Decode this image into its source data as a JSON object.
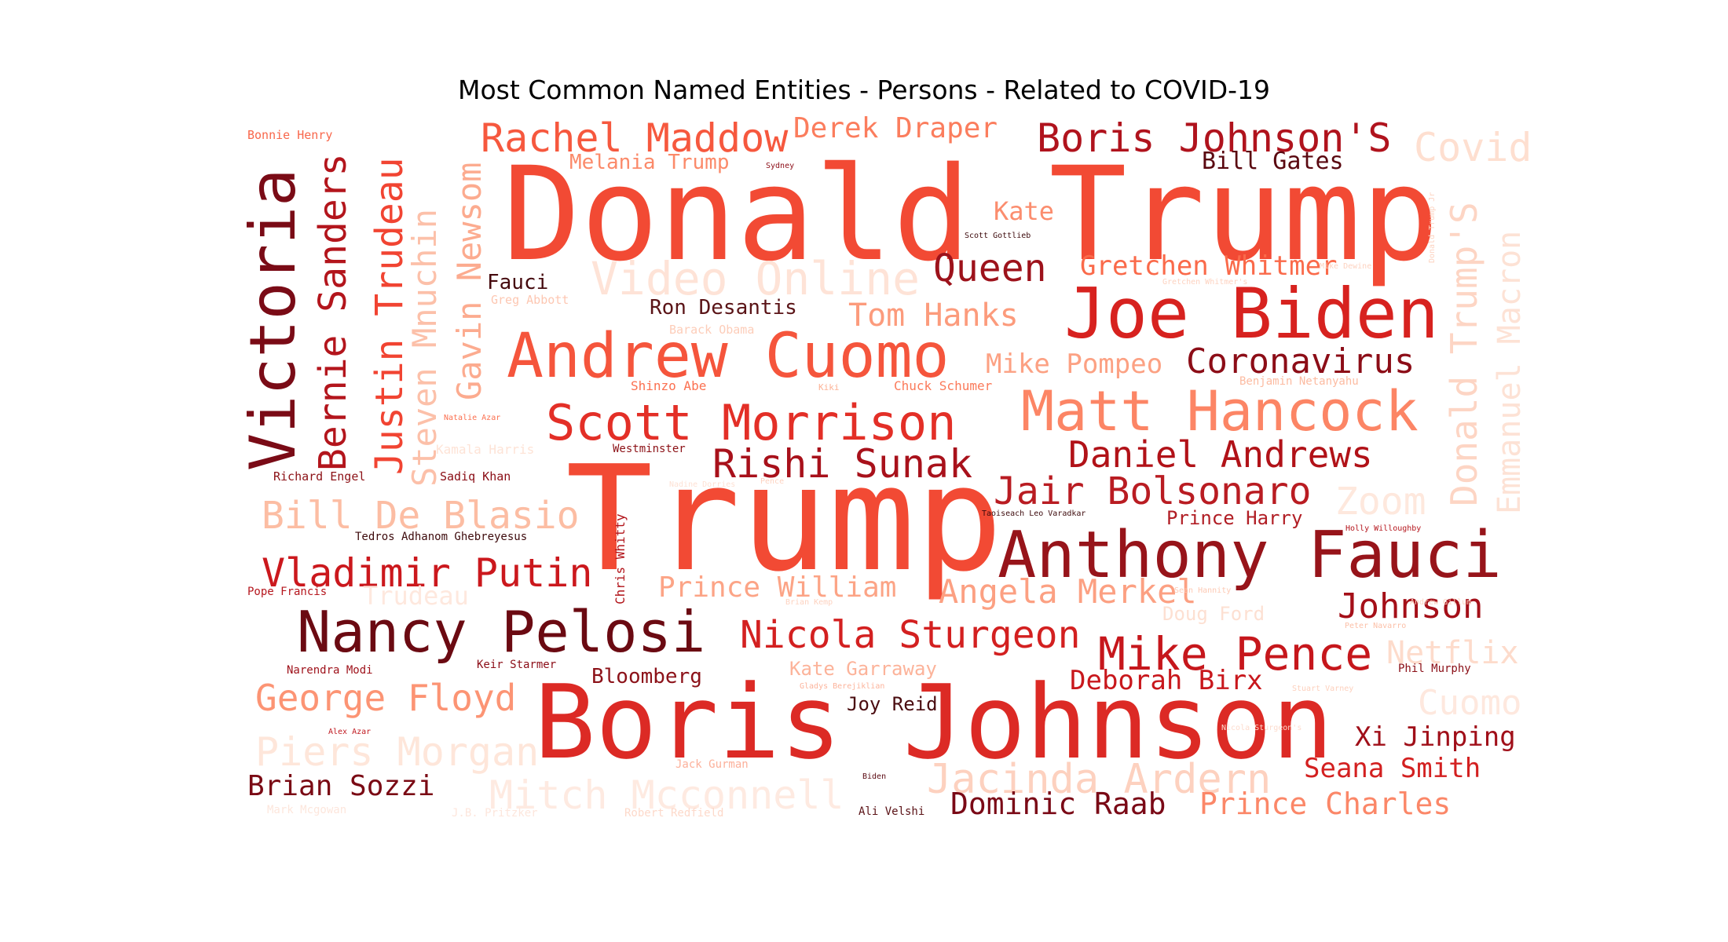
{
  "chart_data": {
    "type": "wordcloud",
    "title": "Most Common Named Entities - Persons - Related to COVID-19",
    "colormap": "Reds",
    "words": [
      {
        "text": "Donald Trump",
        "weight": 100,
        "color": "#f24a34"
      },
      {
        "text": "Trump",
        "weight": 98,
        "color": "#f24a34"
      },
      {
        "text": "Boris Johnson",
        "weight": 88,
        "color": "#dc2a25"
      },
      {
        "text": "Joe Biden",
        "weight": 66,
        "color": "#d7221f"
      },
      {
        "text": "Anthony Fauci",
        "weight": 60,
        "color": "#97141a"
      },
      {
        "text": "Andrew Cuomo",
        "weight": 60,
        "color": "#f5553c"
      },
      {
        "text": "Victoria",
        "weight": 59,
        "color": "#7a0b16"
      },
      {
        "text": "Matt Hancock",
        "weight": 56,
        "color": "#fc8565"
      },
      {
        "text": "Nancy Pelosi",
        "weight": 54,
        "color": "#6b0a12"
      },
      {
        "text": "Scott Morrison",
        "weight": 52,
        "color": "#e32f27"
      },
      {
        "text": "Donald Trump'S",
        "weight": 46,
        "color": "#fdd5c4"
      },
      {
        "text": "Video Online",
        "weight": 46,
        "color": "#fee3d7"
      },
      {
        "text": "Bernie Sanders",
        "weight": 44,
        "color": "#b3151c"
      },
      {
        "text": "Justin Trudeau",
        "weight": 44,
        "color": "#f14432"
      },
      {
        "text": "Mike Pence",
        "weight": 44,
        "color": "#c6171c"
      },
      {
        "text": "Rachel Maddow",
        "weight": 42,
        "color": "#f6583e"
      },
      {
        "text": "Boris Johnson'S",
        "weight": 42,
        "color": "#b0131d"
      },
      {
        "text": "Jacinda Ardern",
        "weight": 42,
        "color": "#fdd1bf"
      },
      {
        "text": "Vladimir Putin",
        "weight": 41,
        "color": "#cb181d"
      },
      {
        "text": "Steven Mnuchin",
        "weight": 41,
        "color": "#fcc0a9"
      },
      {
        "text": "Gavin Newsom",
        "weight": 41,
        "color": "#fcab8f"
      },
      {
        "text": "Rishi Sunak",
        "weight": 40,
        "color": "#a8111b"
      },
      {
        "text": "Jair Bolsonaro",
        "weight": 40,
        "color": "#b91c22"
      },
      {
        "text": "Bill De Blasio",
        "weight": 40,
        "color": "#fcbda3"
      },
      {
        "text": "Piers Morgan",
        "weight": 40,
        "color": "#fee6da"
      },
      {
        "text": "Mitch Mcconnell",
        "weight": 40,
        "color": "#feeae1"
      },
      {
        "text": "Zoom",
        "weight": 40,
        "color": "#fee8dd"
      },
      {
        "text": "Covid",
        "weight": 40,
        "color": "#fedfd0"
      },
      {
        "text": "Emmanuel Macron",
        "weight": 38,
        "color": "#fde2d5"
      },
      {
        "text": "Nicola Sturgeon",
        "weight": 38,
        "color": "#d32020"
      },
      {
        "text": "George Floyd",
        "weight": 38,
        "color": "#fc9474"
      },
      {
        "text": "Daniel Andrews",
        "weight": 38,
        "color": "#b11218"
      },
      {
        "text": "Cuomo",
        "weight": 38,
        "color": "#fee8de"
      },
      {
        "text": "Queen",
        "weight": 37,
        "color": "#9d121b"
      },
      {
        "text": "Coronavirus",
        "weight": 36,
        "color": "#8c0d17"
      },
      {
        "text": "Johnson",
        "weight": 36,
        "color": "#a40f18"
      },
      {
        "text": "Netflix",
        "weight": 36,
        "color": "#fddbcb"
      },
      {
        "text": "Angela Merkel",
        "weight": 35,
        "color": "#fca082"
      },
      {
        "text": "Tom Hanks",
        "weight": 34,
        "color": "#fc9b7c"
      },
      {
        "text": "Prince William",
        "weight": 33,
        "color": "#fca486"
      },
      {
        "text": "Derek Draper",
        "weight": 32,
        "color": "#fb7d5d"
      },
      {
        "text": "Gretchen Whitmer",
        "weight": 32,
        "color": "#fa6a4a"
      },
      {
        "text": "Mike Pompeo",
        "weight": 32,
        "color": "#fca183"
      },
      {
        "text": "Deborah Birx",
        "weight": 32,
        "color": "#c8171c"
      },
      {
        "text": "Xi Jinping",
        "weight": 32,
        "color": "#a00f19"
      },
      {
        "text": "Prince Charles",
        "weight": 32,
        "color": "#fb8768"
      },
      {
        "text": "Seana Smith",
        "weight": 31,
        "color": "#d32020"
      },
      {
        "text": "Dominic Raab",
        "weight": 32,
        "color": "#7a0916"
      },
      {
        "text": "Brian Sozzi",
        "weight": 31,
        "color": "#7a0a14"
      },
      {
        "text": "Bill Gates",
        "weight": 30,
        "color": "#5a0810"
      },
      {
        "text": "Kate",
        "weight": 30,
        "color": "#fb8d6e"
      },
      {
        "text": "Trudeau",
        "weight": 30,
        "color": "#fee8de"
      },
      {
        "text": "Fauci",
        "weight": 24,
        "color": "#450a0e"
      },
      {
        "text": "Ron Desantis",
        "weight": 24,
        "color": "#5a1417"
      },
      {
        "text": "Melania Trump",
        "weight": 24,
        "color": "#fb8a6a"
      },
      {
        "text": "Bloomberg",
        "weight": 24,
        "color": "#8c1219"
      },
      {
        "text": "Joy Reid",
        "weight": 22,
        "color": "#4a0c10"
      },
      {
        "text": "Kate Garraway",
        "weight": 22,
        "color": "#fcb39a"
      },
      {
        "text": "Doug Ford",
        "weight": 22,
        "color": "#fde0d2"
      },
      {
        "text": "Prince Harry",
        "weight": 22,
        "color": "#b11e25"
      },
      {
        "text": "Chris Whitty",
        "weight": 14,
        "color": "#b11218"
      },
      {
        "text": "Shinzo Abe",
        "weight": 15,
        "color": "#fb7050"
      },
      {
        "text": "Chuck Schumer",
        "weight": 15,
        "color": "#fb7a5a"
      },
      {
        "text": "Greg Abbott",
        "weight": 15,
        "color": "#fdc7b2"
      },
      {
        "text": "Barack Obama",
        "weight": 15,
        "color": "#fdcdb9"
      },
      {
        "text": "Benjamin Netanyahu",
        "weight": 14,
        "color": "#fcbba1"
      },
      {
        "text": "Tedros Adhanom Ghebreyesus",
        "weight": 14,
        "color": "#3d0a0c"
      },
      {
        "text": "Richard Engel",
        "weight": 14,
        "color": "#8c1116"
      },
      {
        "text": "Sadiq Khan",
        "weight": 14,
        "color": "#8a0d15"
      },
      {
        "text": "Westminster",
        "weight": 13,
        "color": "#8c1116"
      },
      {
        "text": "Bonnie Henry",
        "weight": 14,
        "color": "#f8674b"
      },
      {
        "text": "Pope Francis",
        "weight": 14,
        "color": "#b5161d"
      },
      {
        "text": "Narendra Modi",
        "weight": 14,
        "color": "#9e1019"
      },
      {
        "text": "Keir Starmer",
        "weight": 14,
        "color": "#8c0d17"
      },
      {
        "text": "Phil Murphy",
        "weight": 14,
        "color": "#8a0d15"
      },
      {
        "text": "Jack Gurman",
        "weight": 14,
        "color": "#fcb09a"
      },
      {
        "text": "Ali Velshi",
        "weight": 14,
        "color": "#5a1216"
      },
      {
        "text": "Mark Mcgowan",
        "weight": 14,
        "color": "#fde6dc"
      },
      {
        "text": "J.B. Pritzker",
        "weight": 14,
        "color": "#fde6dc"
      },
      {
        "text": "Robert Redfield",
        "weight": 14,
        "color": "#fdd9ca"
      },
      {
        "text": "Kamala Harris",
        "weight": 16,
        "color": "#fee3d6"
      },
      {
        "text": "Scott Gottlieb",
        "weight": 10,
        "color": "#3d0a0c"
      },
      {
        "text": "Taoiseach Leo Varadkar",
        "weight": 10,
        "color": "#3d0a0c"
      },
      {
        "text": "Holly Willoughby",
        "weight": 10,
        "color": "#b5161d"
      },
      {
        "text": "Peter Navarro",
        "weight": 10,
        "color": "#fcc0a8"
      },
      {
        "text": "Gladys Berejiklian",
        "weight": 10,
        "color": "#fcb49c"
      },
      {
        "text": "Stuart Varney",
        "weight": 10,
        "color": "#fdd0bd"
      },
      {
        "text": "Sydney",
        "weight": 10,
        "color": "#8c0d17"
      },
      {
        "text": "Kiki",
        "weight": 11,
        "color": "#fcb296"
      },
      {
        "text": "Natalie Azar",
        "weight": 10,
        "color": "#fb7050"
      },
      {
        "text": "Alex Azar",
        "weight": 10,
        "color": "#c01a21"
      },
      {
        "text": "Nadine Dorries",
        "weight": 10,
        "color": "#fee1d4"
      },
      {
        "text": "Andrew Gillum",
        "weight": 10,
        "color": "#fdd3c1"
      },
      {
        "text": "Gretchen Whitmer's",
        "weight": 10,
        "color": "#fdd3c1"
      },
      {
        "text": "Sean Hannity",
        "weight": 10,
        "color": "#fdc9b4"
      },
      {
        "text": "Brian Kemp",
        "weight": 10,
        "color": "#fdd3c1"
      },
      {
        "text": "Pence",
        "weight": 10,
        "color": "#fdd3c1"
      },
      {
        "text": "Nicola Sturgeon's",
        "weight": 10,
        "color": "#fddcce"
      },
      {
        "text": "Biden",
        "weight": 10,
        "color": "#5a0810"
      },
      {
        "text": "Donald Trump Jr",
        "weight": 10,
        "color": "#fdd3c1"
      },
      {
        "text": "Mike Dewine",
        "weight": 10,
        "color": "#fdd3c1"
      }
    ]
  }
}
